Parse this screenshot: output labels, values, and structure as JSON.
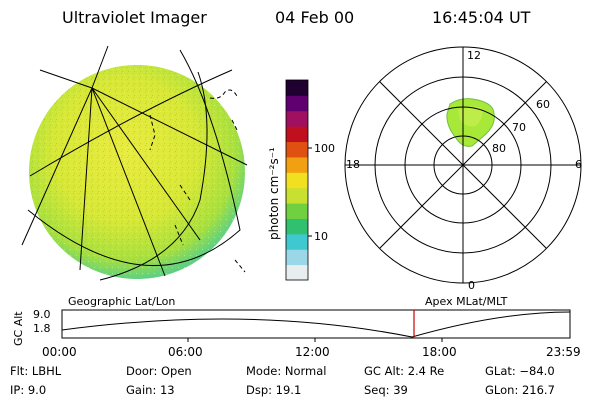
{
  "header": {
    "title": "Ultraviolet Imager",
    "date": "04 Feb 00",
    "time": "16:45:04 UT"
  },
  "colorbar": {
    "label": "photon cm⁻²s⁻¹",
    "ticks": [
      "100",
      "10"
    ],
    "colors": [
      "#e8eef0",
      "#9ad8e8",
      "#40c8d0",
      "#30c070",
      "#70d040",
      "#c8e030",
      "#f0e020",
      "#f0a010",
      "#e05010",
      "#c01020",
      "#a01060",
      "#600070",
      "#200030"
    ]
  },
  "polar": {
    "mlt_labels": [
      "12",
      "18",
      "6",
      "0"
    ],
    "lat_labels": [
      "60",
      "70",
      "80"
    ],
    "auroral_color": "#a8e838"
  },
  "timeline": {
    "left_label": "Geographic Lat/Lon",
    "right_label": "Apex  MLat/MLT",
    "y_axis_title": "GC Alt",
    "y_ticks": [
      "9.0",
      "1.8"
    ],
    "x_ticks": [
      "00:00",
      "06:00",
      "12:00",
      "18:00",
      "23:59"
    ],
    "marker_time": "16:45",
    "marker_color": "#d00000"
  },
  "footer": {
    "rows": [
      [
        "Flt: LBHL",
        "Door: Open",
        "Mode: Normal",
        "GC Alt: 2.4 Re",
        "GLat: −84.0"
      ],
      [
        "IP:  9.0",
        "Gain: 13",
        "Dsp:  19.1",
        "Seq: 39",
        "GLon: 216.7"
      ]
    ]
  }
}
